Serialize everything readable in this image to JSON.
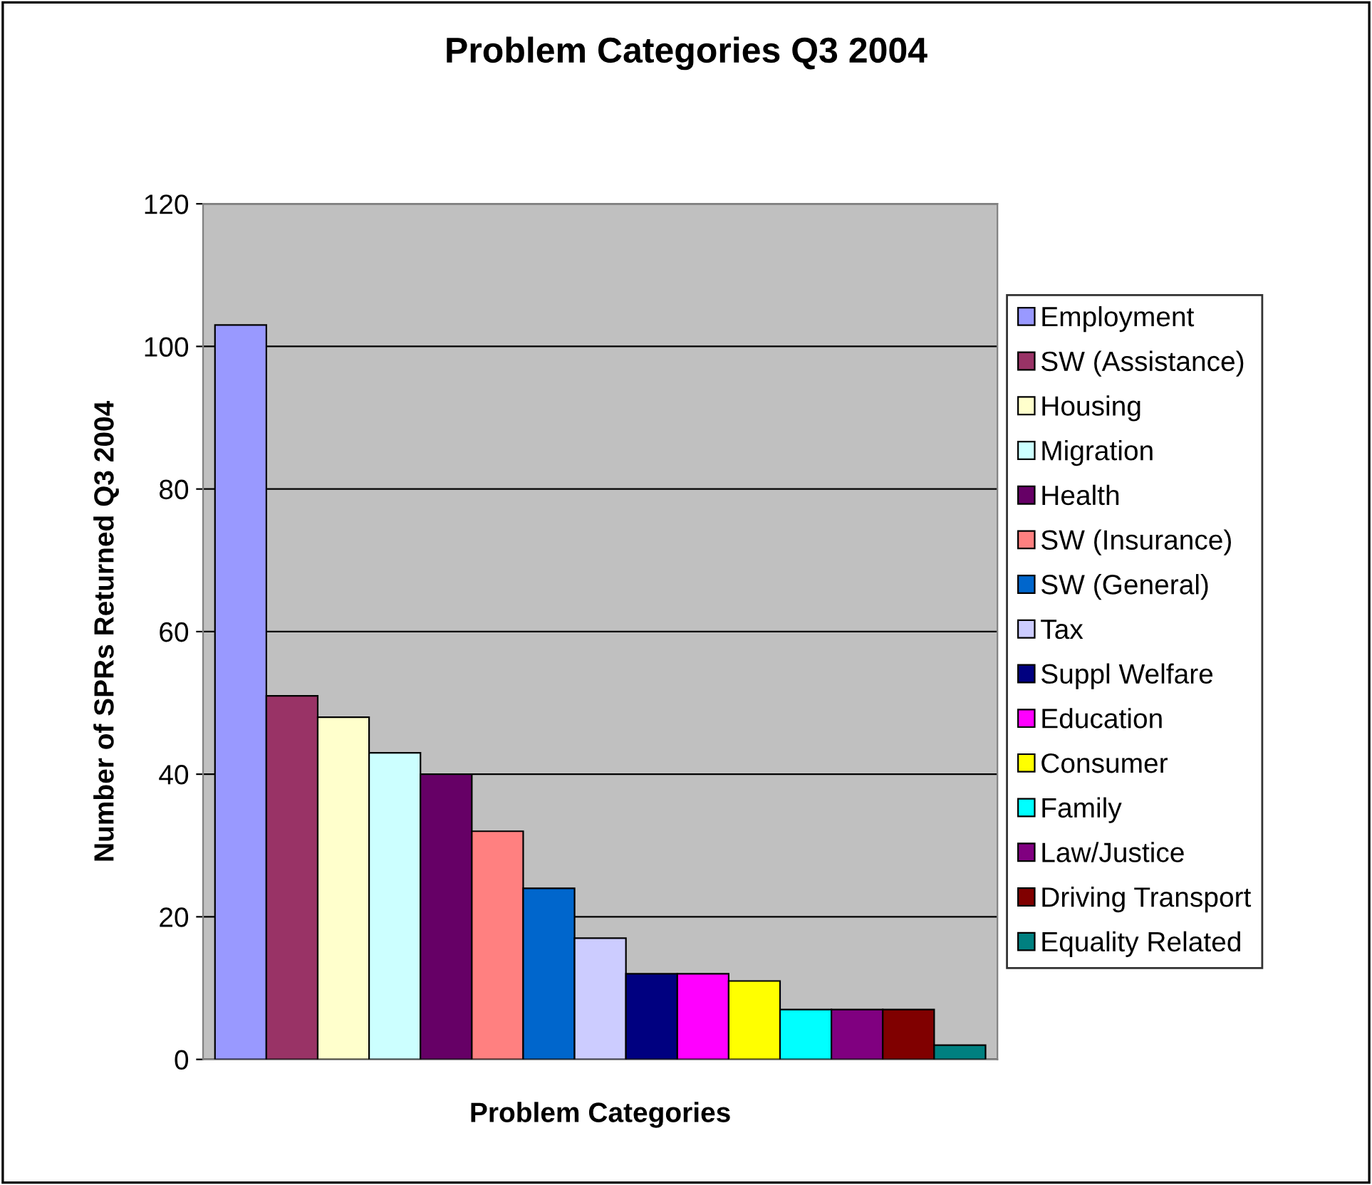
{
  "chart_data": {
    "type": "bar",
    "title": "Problem Categories Q3 2004",
    "xlabel": "Problem Categories",
    "ylabel": "Number of SPRs Returned Q3 2004",
    "categories": [
      null
    ],
    "series": [
      {
        "name": "Employment",
        "color": "#9999ff",
        "values": [
          103
        ]
      },
      {
        "name": "SW (Assistance)",
        "color": "#993366",
        "values": [
          51
        ]
      },
      {
        "name": "Housing",
        "color": "#ffffcc",
        "values": [
          48
        ]
      },
      {
        "name": "Migration",
        "color": "#ccffff",
        "values": [
          43
        ]
      },
      {
        "name": "Health",
        "color": "#660066",
        "values": [
          40
        ]
      },
      {
        "name": "SW (Insurance)",
        "color": "#ff8080",
        "values": [
          32
        ]
      },
      {
        "name": "SW (General)",
        "color": "#0066cc",
        "values": [
          24
        ]
      },
      {
        "name": "Tax",
        "color": "#ccccff",
        "values": [
          17
        ]
      },
      {
        "name": "Suppl Welfare",
        "color": "#000080",
        "values": [
          12
        ]
      },
      {
        "name": "Education",
        "color": "#ff00ff",
        "values": [
          12
        ]
      },
      {
        "name": "Consumer",
        "color": "#ffff00",
        "values": [
          11
        ]
      },
      {
        "name": "Family",
        "color": "#00ffff",
        "values": [
          7
        ]
      },
      {
        "name": "Law/Justice",
        "color": "#800080",
        "values": [
          7
        ]
      },
      {
        "name": "Driving Transport",
        "color": "#800000",
        "values": [
          7
        ]
      },
      {
        "name": "Equality Related",
        "color": "#008080",
        "values": [
          2
        ]
      }
    ],
    "ylim": [
      0,
      120
    ],
    "yticks": [
      0,
      20,
      40,
      60,
      80,
      100,
      120
    ],
    "grid": "y",
    "legend": "right",
    "tick_labels": "y"
  }
}
